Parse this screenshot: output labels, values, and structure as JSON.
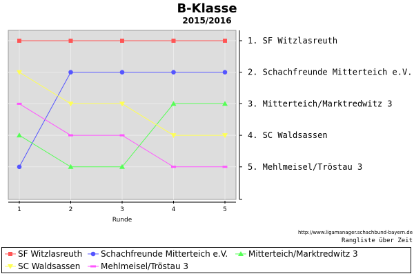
{
  "header": {
    "title": "B-Klasse",
    "subtitle": "2015/2016"
  },
  "footer": {
    "source": "http://www.ligamanager.schachbund-bayern.de",
    "caption": "Rangliste über Zeit"
  },
  "chart_data": {
    "type": "line",
    "title": "B-Klasse",
    "subtitle": "2015/2016",
    "xlabel": "Runde",
    "ylabel": "",
    "x": [
      1,
      2,
      3,
      4,
      5
    ],
    "ylim": [
      1,
      5
    ],
    "y_inverted": true,
    "grid": true,
    "legend_position": "bottom",
    "rank_labels": [
      "1.  SF Witzlasreuth",
      "2.  Schachfreunde Mitterteich e.V.",
      "3.  Mitterteich/Marktredwitz 3",
      "4.  SC Waldsassen",
      "5.  Mehlmeisel/Tröstau 3"
    ],
    "series": [
      {
        "name": "SF Witzlasreuth",
        "values": [
          1,
          1,
          1,
          1,
          1
        ],
        "color": "#ff5555",
        "marker": "square"
      },
      {
        "name": "Schachfreunde Mitterteich e.V.",
        "values": [
          5,
          2,
          2,
          2,
          2
        ],
        "color": "#5555ff",
        "marker": "circle"
      },
      {
        "name": "Mitterteich/Marktredwitz 3",
        "values": [
          4,
          5,
          5,
          3,
          3
        ],
        "color": "#55ff55",
        "marker": "triangle"
      },
      {
        "name": "SC Waldsassen",
        "values": [
          2,
          3,
          3,
          4,
          4
        ],
        "color": "#ffff55",
        "marker": "triangle-down"
      },
      {
        "name": "Mehlmeisel/Tröstau 3",
        "values": [
          3,
          4,
          4,
          5,
          5
        ],
        "color": "#ff55ff",
        "marker": "dash"
      }
    ]
  }
}
